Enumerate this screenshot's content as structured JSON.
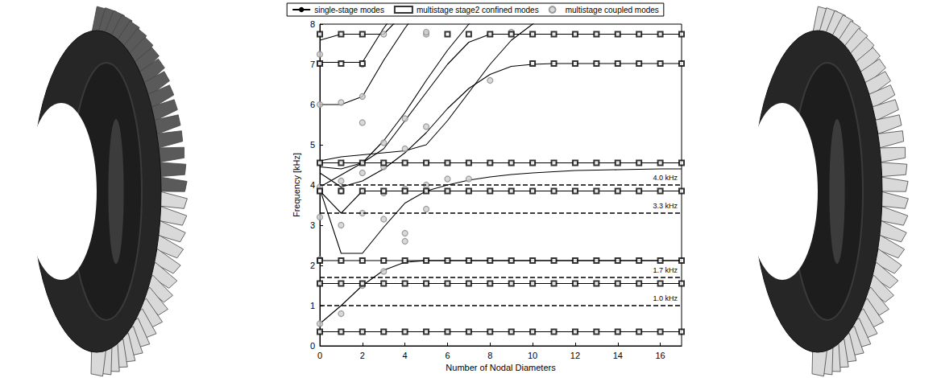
{
  "chart_data": {
    "type": "line",
    "x_label": "Number of Nodal Diameters",
    "y_label": "Frequency [kHz]",
    "xlim": [
      0,
      17
    ],
    "xticks": [
      0,
      2,
      4,
      6,
      8,
      10,
      12,
      14,
      16
    ],
    "ylim": [
      0,
      8
    ],
    "yticks": [
      0,
      1,
      2,
      3,
      4,
      5,
      6,
      7,
      8
    ],
    "grid": false,
    "legend": "top",
    "x": [
      0,
      1,
      2,
      3,
      4,
      5,
      6,
      7,
      8,
      9,
      10,
      11,
      12,
      13,
      14,
      15,
      16,
      17
    ],
    "series": [
      {
        "name": "single-stage modes",
        "type": "line",
        "color": "#000000",
        "line_style": "solid",
        "values": [
          [
            0.35,
            0.35,
            0.35,
            0.35,
            0.35,
            0.35,
            0.35,
            0.35,
            0.35,
            0.35,
            0.35,
            0.35,
            0.35,
            0.35,
            0.35,
            0.35,
            0.35,
            0.35
          ],
          [
            0.55,
            1.0,
            1.5,
            1.88,
            2.08,
            2.12,
            2.12,
            2.12,
            2.12,
            2.12,
            2.12,
            2.12,
            2.12,
            2.12,
            2.12,
            2.12,
            2.12,
            2.12
          ],
          [
            1.55,
            1.55,
            1.55,
            1.55,
            1.55,
            1.55,
            1.55,
            1.55,
            1.55,
            1.55,
            1.55,
            1.55,
            1.55,
            1.55,
            1.55,
            1.55,
            1.55,
            1.55
          ],
          [
            2.12,
            2.12,
            2.12,
            2.12,
            2.12,
            2.12,
            2.12,
            2.12,
            2.12,
            2.12,
            2.12,
            2.12,
            2.12,
            2.12,
            2.12,
            2.12,
            2.12,
            2.12
          ],
          [
            3.9,
            2.3,
            2.3,
            2.95,
            3.55,
            3.85,
            4.0,
            4.12,
            4.2,
            4.26,
            4.3,
            4.33,
            4.36,
            4.37,
            4.38,
            4.39,
            4.4,
            4.4
          ],
          [
            3.85,
            3.3,
            3.85,
            3.85,
            3.85,
            3.85,
            3.85,
            3.85,
            3.85,
            3.85,
            3.85,
            3.85,
            3.85,
            3.85,
            3.85,
            3.85,
            3.85,
            3.85
          ],
          [
            4.55,
            4.55,
            4.55,
            4.55,
            4.55,
            4.55,
            4.55,
            4.55,
            4.55,
            4.55,
            4.55,
            4.55,
            4.55,
            4.55,
            4.55,
            4.55,
            4.55,
            4.55
          ],
          [
            4.3,
            3.95,
            4.1,
            4.4,
            4.8,
            5.3,
            5.9,
            6.4,
            6.75,
            6.95,
            7.0,
            7.02,
            7.02,
            7.02,
            7.02,
            7.02,
            7.02,
            7.02
          ],
          [
            4.45,
            4.4,
            4.55,
            4.9,
            5.6,
            6.3,
            7.0,
            7.55,
            7.75,
            7.75,
            7.75,
            7.75,
            7.75,
            7.75,
            7.75,
            7.75,
            7.75,
            7.75
          ],
          [
            6.0,
            6.0,
            6.2,
            7.1,
            7.9,
            8.6,
            null,
            null,
            null,
            null,
            null,
            null,
            null,
            null,
            null,
            null,
            null,
            null
          ],
          [
            7.05,
            7.05,
            7.05,
            7.9,
            8.6,
            null,
            null,
            null,
            null,
            null,
            null,
            null,
            null,
            null,
            null,
            null,
            null,
            null
          ],
          [
            7.6,
            7.75,
            7.75,
            7.75,
            8.3,
            null,
            null,
            null,
            null,
            null,
            null,
            null,
            null,
            null,
            null,
            null,
            null,
            null
          ],
          [
            3.95,
            4.25,
            4.55,
            5.1,
            5.8,
            6.6,
            7.35,
            8.0,
            8.5,
            null,
            null,
            null,
            null,
            null,
            null,
            null,
            null,
            null
          ],
          [
            4.6,
            4.7,
            4.75,
            4.8,
            4.85,
            5.0,
            5.6,
            6.3,
            7.0,
            7.6,
            8.0,
            8.4,
            null,
            null,
            null,
            null,
            null,
            null
          ]
        ]
      },
      {
        "name": "multistage stage2 confined modes",
        "type": "scatter",
        "color": "#000000",
        "marker": "square",
        "points": [
          [
            0,
            0.35
          ],
          [
            1,
            0.35
          ],
          [
            2,
            0.35
          ],
          [
            3,
            0.35
          ],
          [
            4,
            0.35
          ],
          [
            5,
            0.35
          ],
          [
            6,
            0.35
          ],
          [
            7,
            0.35
          ],
          [
            8,
            0.35
          ],
          [
            9,
            0.35
          ],
          [
            10,
            0.35
          ],
          [
            11,
            0.35
          ],
          [
            12,
            0.35
          ],
          [
            13,
            0.35
          ],
          [
            14,
            0.35
          ],
          [
            15,
            0.35
          ],
          [
            16,
            0.35
          ],
          [
            17,
            0.35
          ],
          [
            0,
            1.55
          ],
          [
            1,
            1.55
          ],
          [
            2,
            1.55
          ],
          [
            3,
            1.55
          ],
          [
            4,
            1.55
          ],
          [
            5,
            1.55
          ],
          [
            6,
            1.55
          ],
          [
            7,
            1.55
          ],
          [
            8,
            1.55
          ],
          [
            9,
            1.55
          ],
          [
            10,
            1.55
          ],
          [
            11,
            1.55
          ],
          [
            12,
            1.55
          ],
          [
            13,
            1.55
          ],
          [
            14,
            1.55
          ],
          [
            15,
            1.55
          ],
          [
            16,
            1.55
          ],
          [
            17,
            1.55
          ],
          [
            0,
            2.12
          ],
          [
            1,
            2.12
          ],
          [
            2,
            2.12
          ],
          [
            3,
            2.12
          ],
          [
            4,
            2.12
          ],
          [
            5,
            2.12
          ],
          [
            6,
            2.12
          ],
          [
            7,
            2.12
          ],
          [
            8,
            2.12
          ],
          [
            9,
            2.12
          ],
          [
            10,
            2.12
          ],
          [
            11,
            2.12
          ],
          [
            12,
            2.12
          ],
          [
            13,
            2.12
          ],
          [
            14,
            2.12
          ],
          [
            15,
            2.12
          ],
          [
            16,
            2.12
          ],
          [
            17,
            2.12
          ],
          [
            0,
            3.85
          ],
          [
            1,
            3.85
          ],
          [
            2,
            3.85
          ],
          [
            3,
            3.85
          ],
          [
            4,
            3.85
          ],
          [
            5,
            3.85
          ],
          [
            6,
            3.85
          ],
          [
            7,
            3.85
          ],
          [
            8,
            3.85
          ],
          [
            9,
            3.85
          ],
          [
            10,
            3.85
          ],
          [
            11,
            3.85
          ],
          [
            12,
            3.85
          ],
          [
            13,
            3.85
          ],
          [
            14,
            3.85
          ],
          [
            15,
            3.85
          ],
          [
            16,
            3.85
          ],
          [
            17,
            3.85
          ],
          [
            0,
            4.55
          ],
          [
            1,
            4.55
          ],
          [
            2,
            4.55
          ],
          [
            3,
            4.55
          ],
          [
            4,
            4.55
          ],
          [
            5,
            4.55
          ],
          [
            6,
            4.55
          ],
          [
            7,
            4.55
          ],
          [
            8,
            4.55
          ],
          [
            9,
            4.55
          ],
          [
            10,
            4.55
          ],
          [
            11,
            4.55
          ],
          [
            12,
            4.55
          ],
          [
            13,
            4.55
          ],
          [
            14,
            4.55
          ],
          [
            15,
            4.55
          ],
          [
            16,
            4.55
          ],
          [
            17,
            4.55
          ],
          [
            0,
            7.02
          ],
          [
            1,
            7.02
          ],
          [
            2,
            7.02
          ],
          [
            10,
            7.02
          ],
          [
            11,
            7.02
          ],
          [
            12,
            7.02
          ],
          [
            13,
            7.02
          ],
          [
            14,
            7.02
          ],
          [
            15,
            7.02
          ],
          [
            16,
            7.02
          ],
          [
            17,
            7.02
          ],
          [
            0,
            7.75
          ],
          [
            1,
            7.75
          ],
          [
            2,
            7.75
          ],
          [
            6,
            7.75
          ],
          [
            7,
            7.75
          ],
          [
            8,
            7.75
          ],
          [
            9,
            7.75
          ],
          [
            10,
            7.75
          ],
          [
            11,
            7.75
          ],
          [
            12,
            7.75
          ],
          [
            13,
            7.75
          ],
          [
            14,
            7.75
          ],
          [
            15,
            7.75
          ],
          [
            16,
            7.75
          ],
          [
            17,
            7.75
          ]
        ]
      },
      {
        "name": "multistage coupled modes",
        "type": "scatter",
        "color": "#888888",
        "marker": "circle",
        "points": [
          [
            0,
            0.55
          ],
          [
            0,
            2.15
          ],
          [
            0,
            3.2
          ],
          [
            0,
            3.85
          ],
          [
            0,
            3.95
          ],
          [
            0,
            6.0
          ],
          [
            0,
            7.25
          ],
          [
            1,
            0.8
          ],
          [
            1,
            3.0
          ],
          [
            1,
            3.85
          ],
          [
            1,
            4.1
          ],
          [
            1,
            6.05
          ],
          [
            2,
            1.5
          ],
          [
            2,
            3.3
          ],
          [
            2,
            4.3
          ],
          [
            2,
            5.55
          ],
          [
            2,
            6.2
          ],
          [
            2,
            7.0
          ],
          [
            3,
            1.85
          ],
          [
            3,
            3.15
          ],
          [
            3,
            3.8
          ],
          [
            3,
            4.45
          ],
          [
            3,
            5.05
          ],
          [
            3,
            7.75
          ],
          [
            4,
            2.6
          ],
          [
            4,
            2.8
          ],
          [
            4,
            3.9
          ],
          [
            4,
            4.9
          ],
          [
            4,
            5.65
          ],
          [
            5,
            3.4
          ],
          [
            5,
            4.0
          ],
          [
            5,
            5.45
          ],
          [
            5,
            7.75
          ],
          [
            5,
            7.8
          ],
          [
            6,
            4.15
          ],
          [
            7,
            4.15
          ],
          [
            8,
            6.6
          ],
          [
            9,
            7.8
          ]
        ]
      }
    ],
    "reference_lines": [
      {
        "value": 4.0,
        "label": "4.0 kHz",
        "line_style": "dashed",
        "color": "#000000"
      },
      {
        "value": 3.3,
        "label": "3.3 kHz",
        "line_style": "dashed",
        "color": "#000000"
      },
      {
        "value": 1.7,
        "label": "1.7 kHz",
        "line_style": "dashed",
        "color": "#000000"
      },
      {
        "value": 1.0,
        "label": "1.0 kHz",
        "line_style": "dashed",
        "color": "#000000"
      }
    ]
  }
}
